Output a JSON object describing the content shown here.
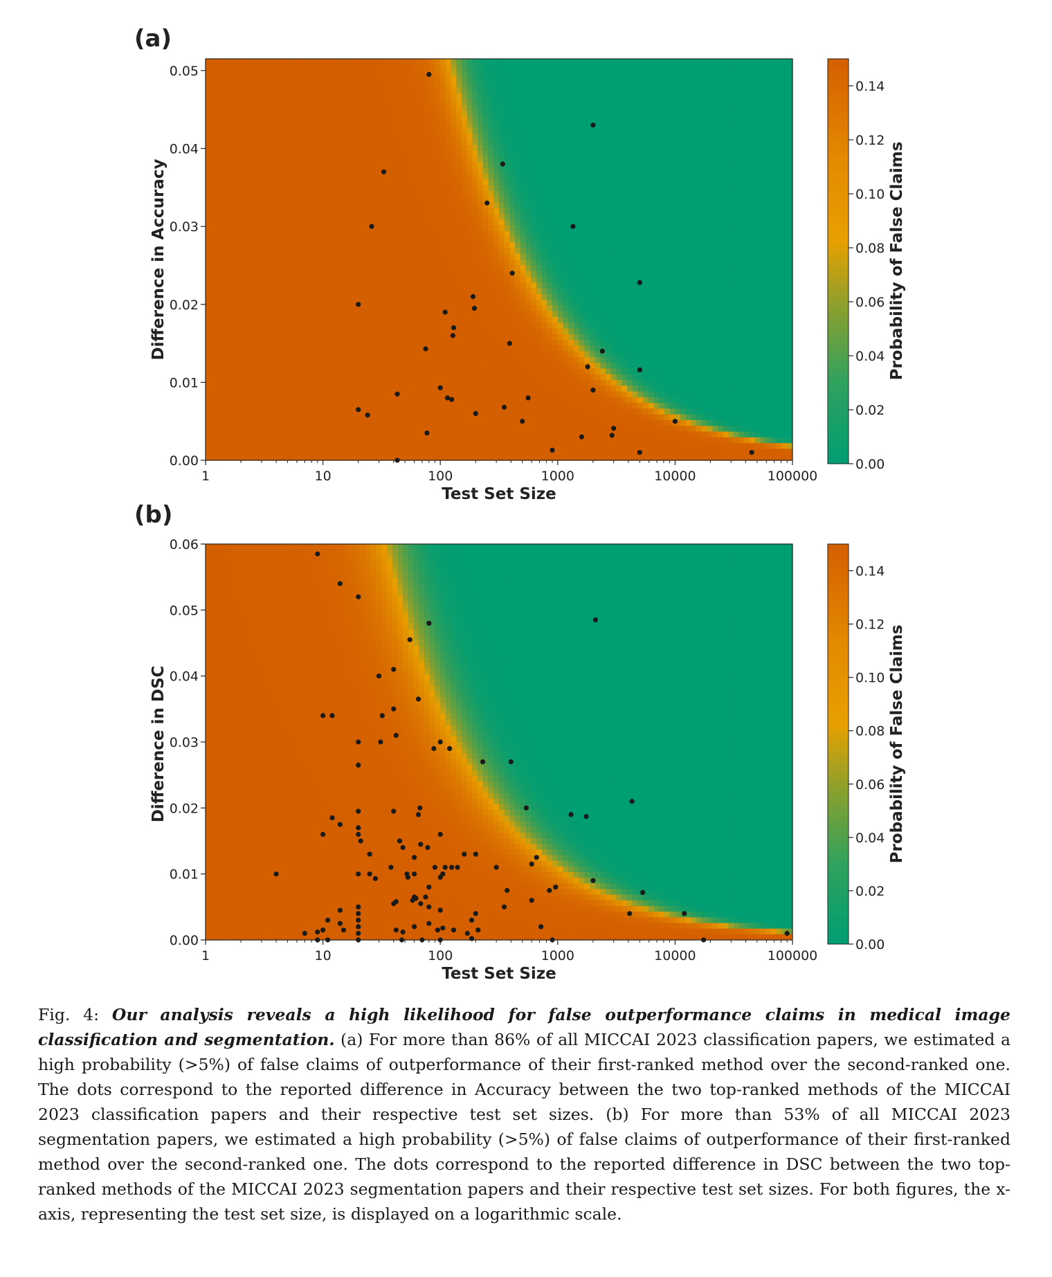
{
  "colors": {
    "high": "#d45f00",
    "mid": "#e8a000",
    "low": "#009e73",
    "dot": "#1a1a1a"
  },
  "chart_data": [
    {
      "type": "heatmap",
      "panel_label": "(a)",
      "xlabel": "Test Set Size",
      "ylabel": "Difference in Accuracy",
      "colorbar_label": "Probability of False Claims",
      "x_scale": "log",
      "xlim": [
        1,
        100000
      ],
      "ylim": [
        0,
        0.0515
      ],
      "x_ticks": [
        "1",
        "10",
        "100",
        "1000",
        "10000",
        "100000"
      ],
      "y_ticks": [
        "0.00",
        "0.01",
        "0.02",
        "0.03",
        "0.04",
        "0.05"
      ],
      "colorbar_range": [
        0,
        0.15
      ],
      "colorbar_ticks": [
        "0.00",
        "0.02",
        "0.04",
        "0.06",
        "0.08",
        "0.10",
        "0.12",
        "0.14"
      ],
      "points": [
        [
          80,
          0.0495
        ],
        [
          2000,
          0.043
        ],
        [
          340,
          0.038
        ],
        [
          33,
          0.037
        ],
        [
          26,
          0.03
        ],
        [
          250,
          0.033
        ],
        [
          1350,
          0.03
        ],
        [
          410,
          0.024
        ],
        [
          5000,
          0.0228
        ],
        [
          20,
          0.02
        ],
        [
          190,
          0.021
        ],
        [
          195,
          0.0195
        ],
        [
          110,
          0.019
        ],
        [
          130,
          0.017
        ],
        [
          128,
          0.016
        ],
        [
          390,
          0.015
        ],
        [
          75,
          0.0143
        ],
        [
          2400,
          0.014
        ],
        [
          1800,
          0.012
        ],
        [
          5000,
          0.0116
        ],
        [
          100,
          0.0093
        ],
        [
          2000,
          0.009
        ],
        [
          43,
          0.0085
        ],
        [
          115,
          0.008
        ],
        [
          125,
          0.0078
        ],
        [
          560,
          0.008
        ],
        [
          20,
          0.0065
        ],
        [
          24,
          0.0058
        ],
        [
          200,
          0.006
        ],
        [
          350,
          0.0068
        ],
        [
          500,
          0.005
        ],
        [
          10000,
          0.005
        ],
        [
          77,
          0.0035
        ],
        [
          3000,
          0.0041
        ],
        [
          2900,
          0.0032
        ],
        [
          1600,
          0.003
        ],
        [
          900,
          0.0013
        ],
        [
          5000,
          0.001
        ],
        [
          45000,
          0.001
        ],
        [
          43,
          0.0
        ]
      ]
    },
    {
      "type": "heatmap",
      "panel_label": "(b)",
      "xlabel": "Test Set Size",
      "ylabel": "Difference in DSC",
      "colorbar_label": "Probability of False Claims",
      "x_scale": "log",
      "xlim": [
        1,
        100000
      ],
      "ylim": [
        0,
        0.06
      ],
      "x_ticks": [
        "1",
        "10",
        "100",
        "1000",
        "10000",
        "100000"
      ],
      "y_ticks": [
        "0.00",
        "0.01",
        "0.02",
        "0.03",
        "0.04",
        "0.05",
        "0.06"
      ],
      "colorbar_range": [
        0,
        0.15
      ],
      "colorbar_ticks": [
        "0.00",
        "0.02",
        "0.04",
        "0.06",
        "0.08",
        "0.10",
        "0.12",
        "0.14"
      ],
      "points": [
        [
          9,
          0.0585
        ],
        [
          14,
          0.054
        ],
        [
          20,
          0.052
        ],
        [
          80,
          0.048
        ],
        [
          2100,
          0.0485
        ],
        [
          55,
          0.0455
        ],
        [
          30,
          0.04
        ],
        [
          40,
          0.041
        ],
        [
          65,
          0.0365
        ],
        [
          10,
          0.034
        ],
        [
          12,
          0.034
        ],
        [
          32,
          0.034
        ],
        [
          40,
          0.035
        ],
        [
          20,
          0.03
        ],
        [
          31,
          0.03
        ],
        [
          42,
          0.031
        ],
        [
          88,
          0.029
        ],
        [
          100,
          0.03
        ],
        [
          120,
          0.029
        ],
        [
          230,
          0.027
        ],
        [
          400,
          0.027
        ],
        [
          20,
          0.0265
        ],
        [
          20,
          0.0195
        ],
        [
          40,
          0.0195
        ],
        [
          65,
          0.019
        ],
        [
          67,
          0.02
        ],
        [
          540,
          0.02
        ],
        [
          1300,
          0.019
        ],
        [
          1750,
          0.0187
        ],
        [
          4300,
          0.021
        ],
        [
          12,
          0.0185
        ],
        [
          14,
          0.0175
        ],
        [
          10,
          0.016
        ],
        [
          20,
          0.017
        ],
        [
          20,
          0.016
        ],
        [
          21,
          0.015
        ],
        [
          45,
          0.015
        ],
        [
          48,
          0.014
        ],
        [
          68,
          0.0145
        ],
        [
          78,
          0.014
        ],
        [
          100,
          0.016
        ],
        [
          25,
          0.013
        ],
        [
          60,
          0.0125
        ],
        [
          90,
          0.011
        ],
        [
          110,
          0.011
        ],
        [
          125,
          0.011
        ],
        [
          140,
          0.011
        ],
        [
          160,
          0.013
        ],
        [
          200,
          0.013
        ],
        [
          300,
          0.011
        ],
        [
          600,
          0.0115
        ],
        [
          660,
          0.0125
        ],
        [
          4,
          0.01
        ],
        [
          20,
          0.01
        ],
        [
          25,
          0.01
        ],
        [
          28,
          0.0093
        ],
        [
          38,
          0.011
        ],
        [
          52,
          0.01
        ],
        [
          53,
          0.0095
        ],
        [
          60,
          0.01
        ],
        [
          100,
          0.0095
        ],
        [
          105,
          0.01
        ],
        [
          75,
          0.0065
        ],
        [
          80,
          0.008
        ],
        [
          370,
          0.0075
        ],
        [
          600,
          0.006
        ],
        [
          850,
          0.0075
        ],
        [
          960,
          0.008
        ],
        [
          2000,
          0.009
        ],
        [
          5300,
          0.0072
        ],
        [
          40,
          0.0055
        ],
        [
          42,
          0.0058
        ],
        [
          58,
          0.006
        ],
        [
          60,
          0.0065
        ],
        [
          62,
          0.0063
        ],
        [
          68,
          0.0055
        ],
        [
          80,
          0.005
        ],
        [
          100,
          0.0045
        ],
        [
          350,
          0.005
        ],
        [
          20,
          0.005
        ],
        [
          14,
          0.0045
        ],
        [
          11,
          0.003
        ],
        [
          14,
          0.0025
        ],
        [
          20,
          0.004
        ],
        [
          20,
          0.003
        ],
        [
          20,
          0.002
        ],
        [
          20,
          0.001
        ],
        [
          7,
          0.001
        ],
        [
          9,
          0.0012
        ],
        [
          10,
          0.0015
        ],
        [
          15,
          0.0015
        ],
        [
          42,
          0.0015
        ],
        [
          48,
          0.0012
        ],
        [
          60,
          0.002
        ],
        [
          80,
          0.0025
        ],
        [
          95,
          0.0015
        ],
        [
          105,
          0.0018
        ],
        [
          130,
          0.0015
        ],
        [
          170,
          0.001
        ],
        [
          185,
          0.003
        ],
        [
          200,
          0.004
        ],
        [
          210,
          0.0015
        ],
        [
          720,
          0.002
        ],
        [
          4100,
          0.004
        ],
        [
          12000,
          0.004
        ],
        [
          9,
          0.0
        ],
        [
          11,
          0.0
        ],
        [
          20,
          0.0
        ],
        [
          47,
          0.0
        ],
        [
          70,
          0.0
        ],
        [
          100,
          0.0
        ],
        [
          185,
          0.0002
        ],
        [
          900,
          0.0
        ],
        [
          17500,
          0.0
        ],
        [
          90000,
          0.001
        ]
      ]
    }
  ],
  "caption": {
    "prefix": "Fig. 4: ",
    "title": "Our analysis reveals a high likelihood for false outperformance claims in medical image classification and segmentation.",
    "body": " (a) For more than 86% of all MICCAI 2023 classification papers, we estimated a high probability (>5%) of false claims of outperformance of their first-ranked method over the second-ranked one. The dots correspond to the reported difference in Accuracy between the two top-ranked methods of the MICCAI 2023 classification papers and their respective test set sizes. (b) For more than 53% of all MICCAI 2023 segmentation papers, we estimated a high probability (>5%) of false claims of outperformance of their first-ranked method over the second-ranked one. The dots correspond to the reported difference in DSC between the two top-ranked methods of the MICCAI 2023 segmentation papers and their respective test set sizes. For both figures, the x-axis, representing the test set size, is displayed on a logarithmic scale."
  }
}
